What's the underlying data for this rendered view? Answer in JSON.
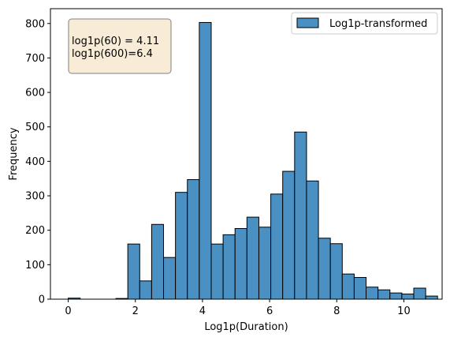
{
  "chart_data": {
    "type": "bar",
    "subtype": "histogram",
    "title": "",
    "xlabel": "Log1p(Duration)",
    "ylabel": "Frequency",
    "xlim": [
      -0.53,
      11.14
    ],
    "ylim": [
      0,
      843
    ],
    "xticks": [
      0,
      2,
      4,
      6,
      8,
      10
    ],
    "yticks": [
      0,
      100,
      200,
      300,
      400,
      500,
      600,
      700,
      800
    ],
    "bin_start": 0.0,
    "bin_width": 0.355,
    "series": [
      {
        "name": "Log1p-transformed",
        "color": "#4a90c2",
        "edgecolor": "#000000",
        "values": [
          3,
          0,
          0,
          0,
          2,
          160,
          53,
          217,
          121,
          310,
          347,
          803,
          160,
          187,
          205,
          238,
          209,
          305,
          371,
          485,
          343,
          177,
          161,
          73,
          63,
          35,
          27,
          18,
          15,
          32,
          9
        ]
      }
    ],
    "legend": {
      "position": "top-right",
      "entries": [
        "Log1p-transformed"
      ]
    },
    "annotation": {
      "lines": [
        "log1p(60) = 4.11",
        "log1p(600)=6.4"
      ],
      "background": "#f8ecd6",
      "border": "#7f7f7f",
      "position": "top-left"
    },
    "grid": false
  }
}
